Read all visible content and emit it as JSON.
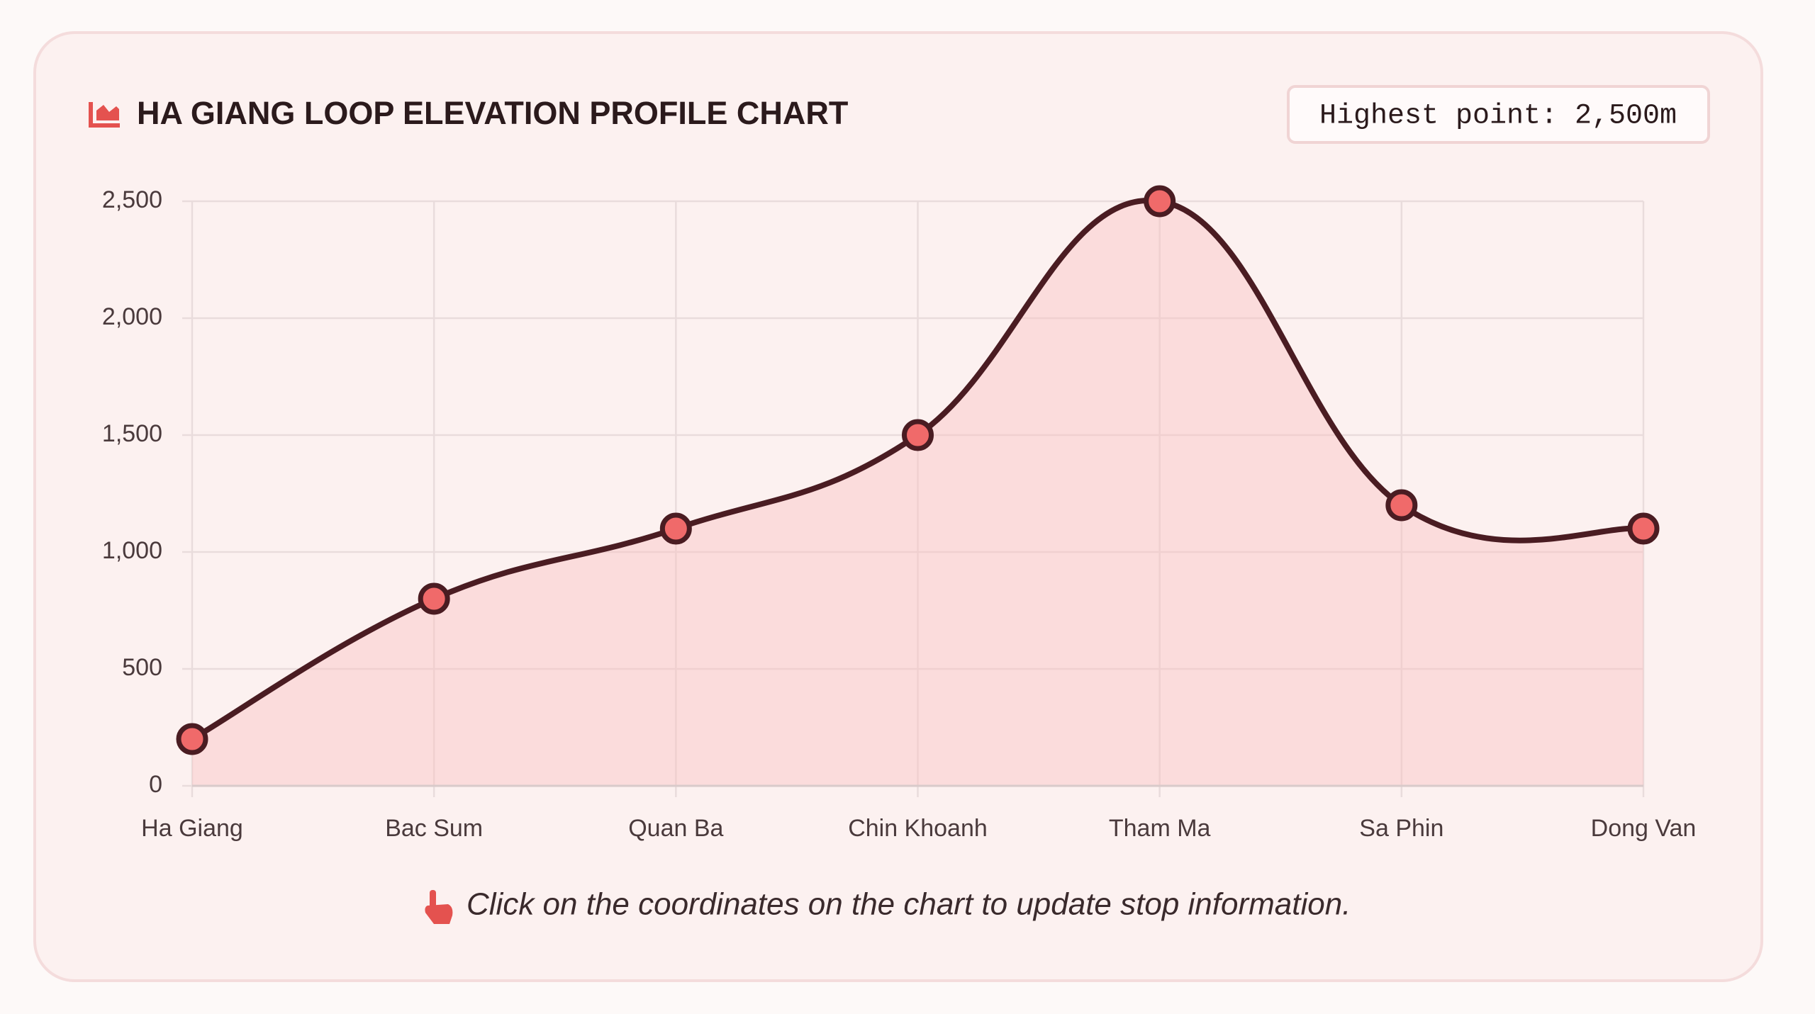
{
  "chart_data": {
    "type": "line",
    "title": "HA GIANG LOOP ELEVATION PROFILE CHART",
    "badge": "Highest point: 2,500m",
    "note": "Click on the coordinates on the chart to update stop information.",
    "categories": [
      "Ha Giang",
      "Bac Sum",
      "Quan Ba",
      "Chin Khoanh",
      "Tham Ma",
      "Sa Phin",
      "Dong Van"
    ],
    "values": [
      200,
      800,
      1100,
      1500,
      2500,
      1200,
      1100
    ],
    "color": "#4a1c22",
    "ylim": [
      0,
      2500
    ],
    "yticks": [
      0,
      500,
      {
        "value": 1000,
        "label": "1,000"
      },
      {
        "value": 1500,
        "label": "1,500"
      },
      {
        "value": 2000,
        "label": "2,000"
      },
      {
        "value": 2500,
        "label": "2,500"
      }
    ],
    "grid": true
  }
}
